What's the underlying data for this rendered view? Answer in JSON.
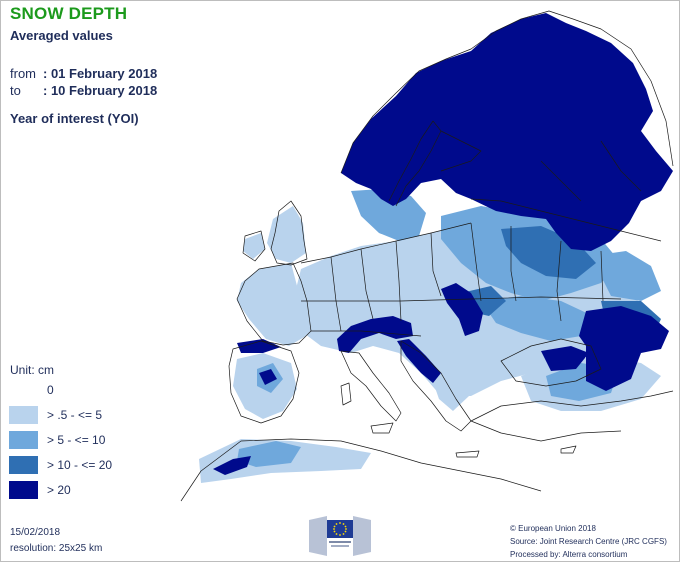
{
  "header": {
    "title": "SNOW DEPTH",
    "subtitle": "Averaged values",
    "from_label": "from",
    "from_value": ": 01 February 2018",
    "to_label": "to",
    "to_value": ": 10 February 2018",
    "year_of_interest": "Year of interest (YOI)"
  },
  "legend": {
    "unit": "Unit: cm",
    "classes": [
      {
        "label": "0",
        "color": "#ffffff"
      },
      {
        "label": "> .5 - <= 5",
        "color": "#b9d3ed"
      },
      {
        "label": "> 5 - <= 10",
        "color": "#6fa8dc"
      },
      {
        "label": "> 10 - <= 20",
        "color": "#2f6fb3"
      },
      {
        "label": "> 20",
        "color": "#000a8c"
      }
    ]
  },
  "footer": {
    "date": "15/02/2018",
    "resolution": "resolution: 25x25 km",
    "copyright": "© European Union 2018",
    "source": "Source: Joint Research Centre (JRC CGFS)",
    "processed_by": "Processed by: Alterra consortium",
    "eu_logo": "European Commission logo"
  },
  "map": {
    "colors": {
      "sea": "#ffffff",
      "land": "#ffffff",
      "border": "#1a1a1a"
    }
  }
}
